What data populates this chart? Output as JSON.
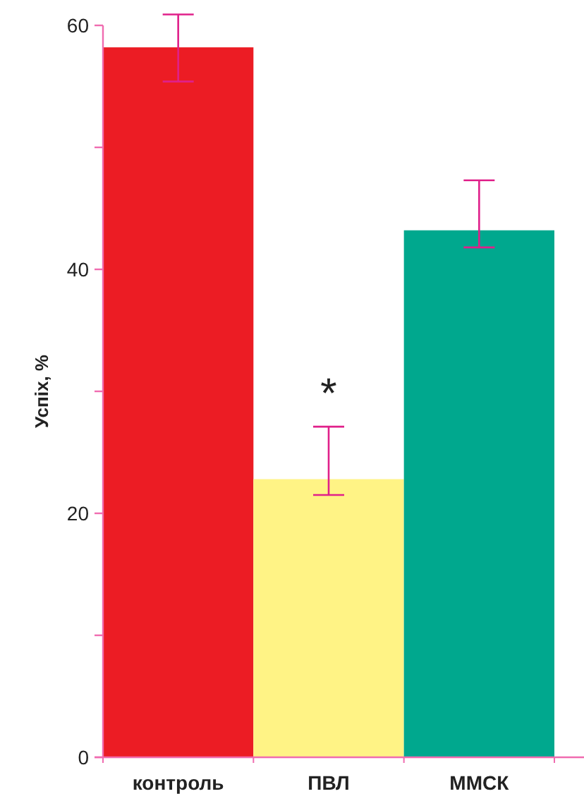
{
  "chart_data": {
    "type": "bar",
    "ylabel": "Успіх, %",
    "categories": [
      "контроль",
      "ПВЛ",
      "ММСК"
    ],
    "values": [
      58.2,
      22.8,
      43.2
    ],
    "colors": [
      "#ec1c24",
      "#fff385",
      "#00a88e"
    ],
    "errors": [
      [
        55.4,
        60.9
      ],
      [
        21.5,
        27.1
      ],
      [
        41.8,
        47.3
      ]
    ],
    "ylim": [
      0,
      60
    ],
    "yticks": [
      0,
      {
        "value": 10,
        "label": null
      },
      20,
      {
        "value": 30,
        "label": null
      },
      40,
      {
        "value": 50,
        "label": null
      },
      60
    ],
    "annotations": [
      "*"
    ],
    "grid": false
  }
}
